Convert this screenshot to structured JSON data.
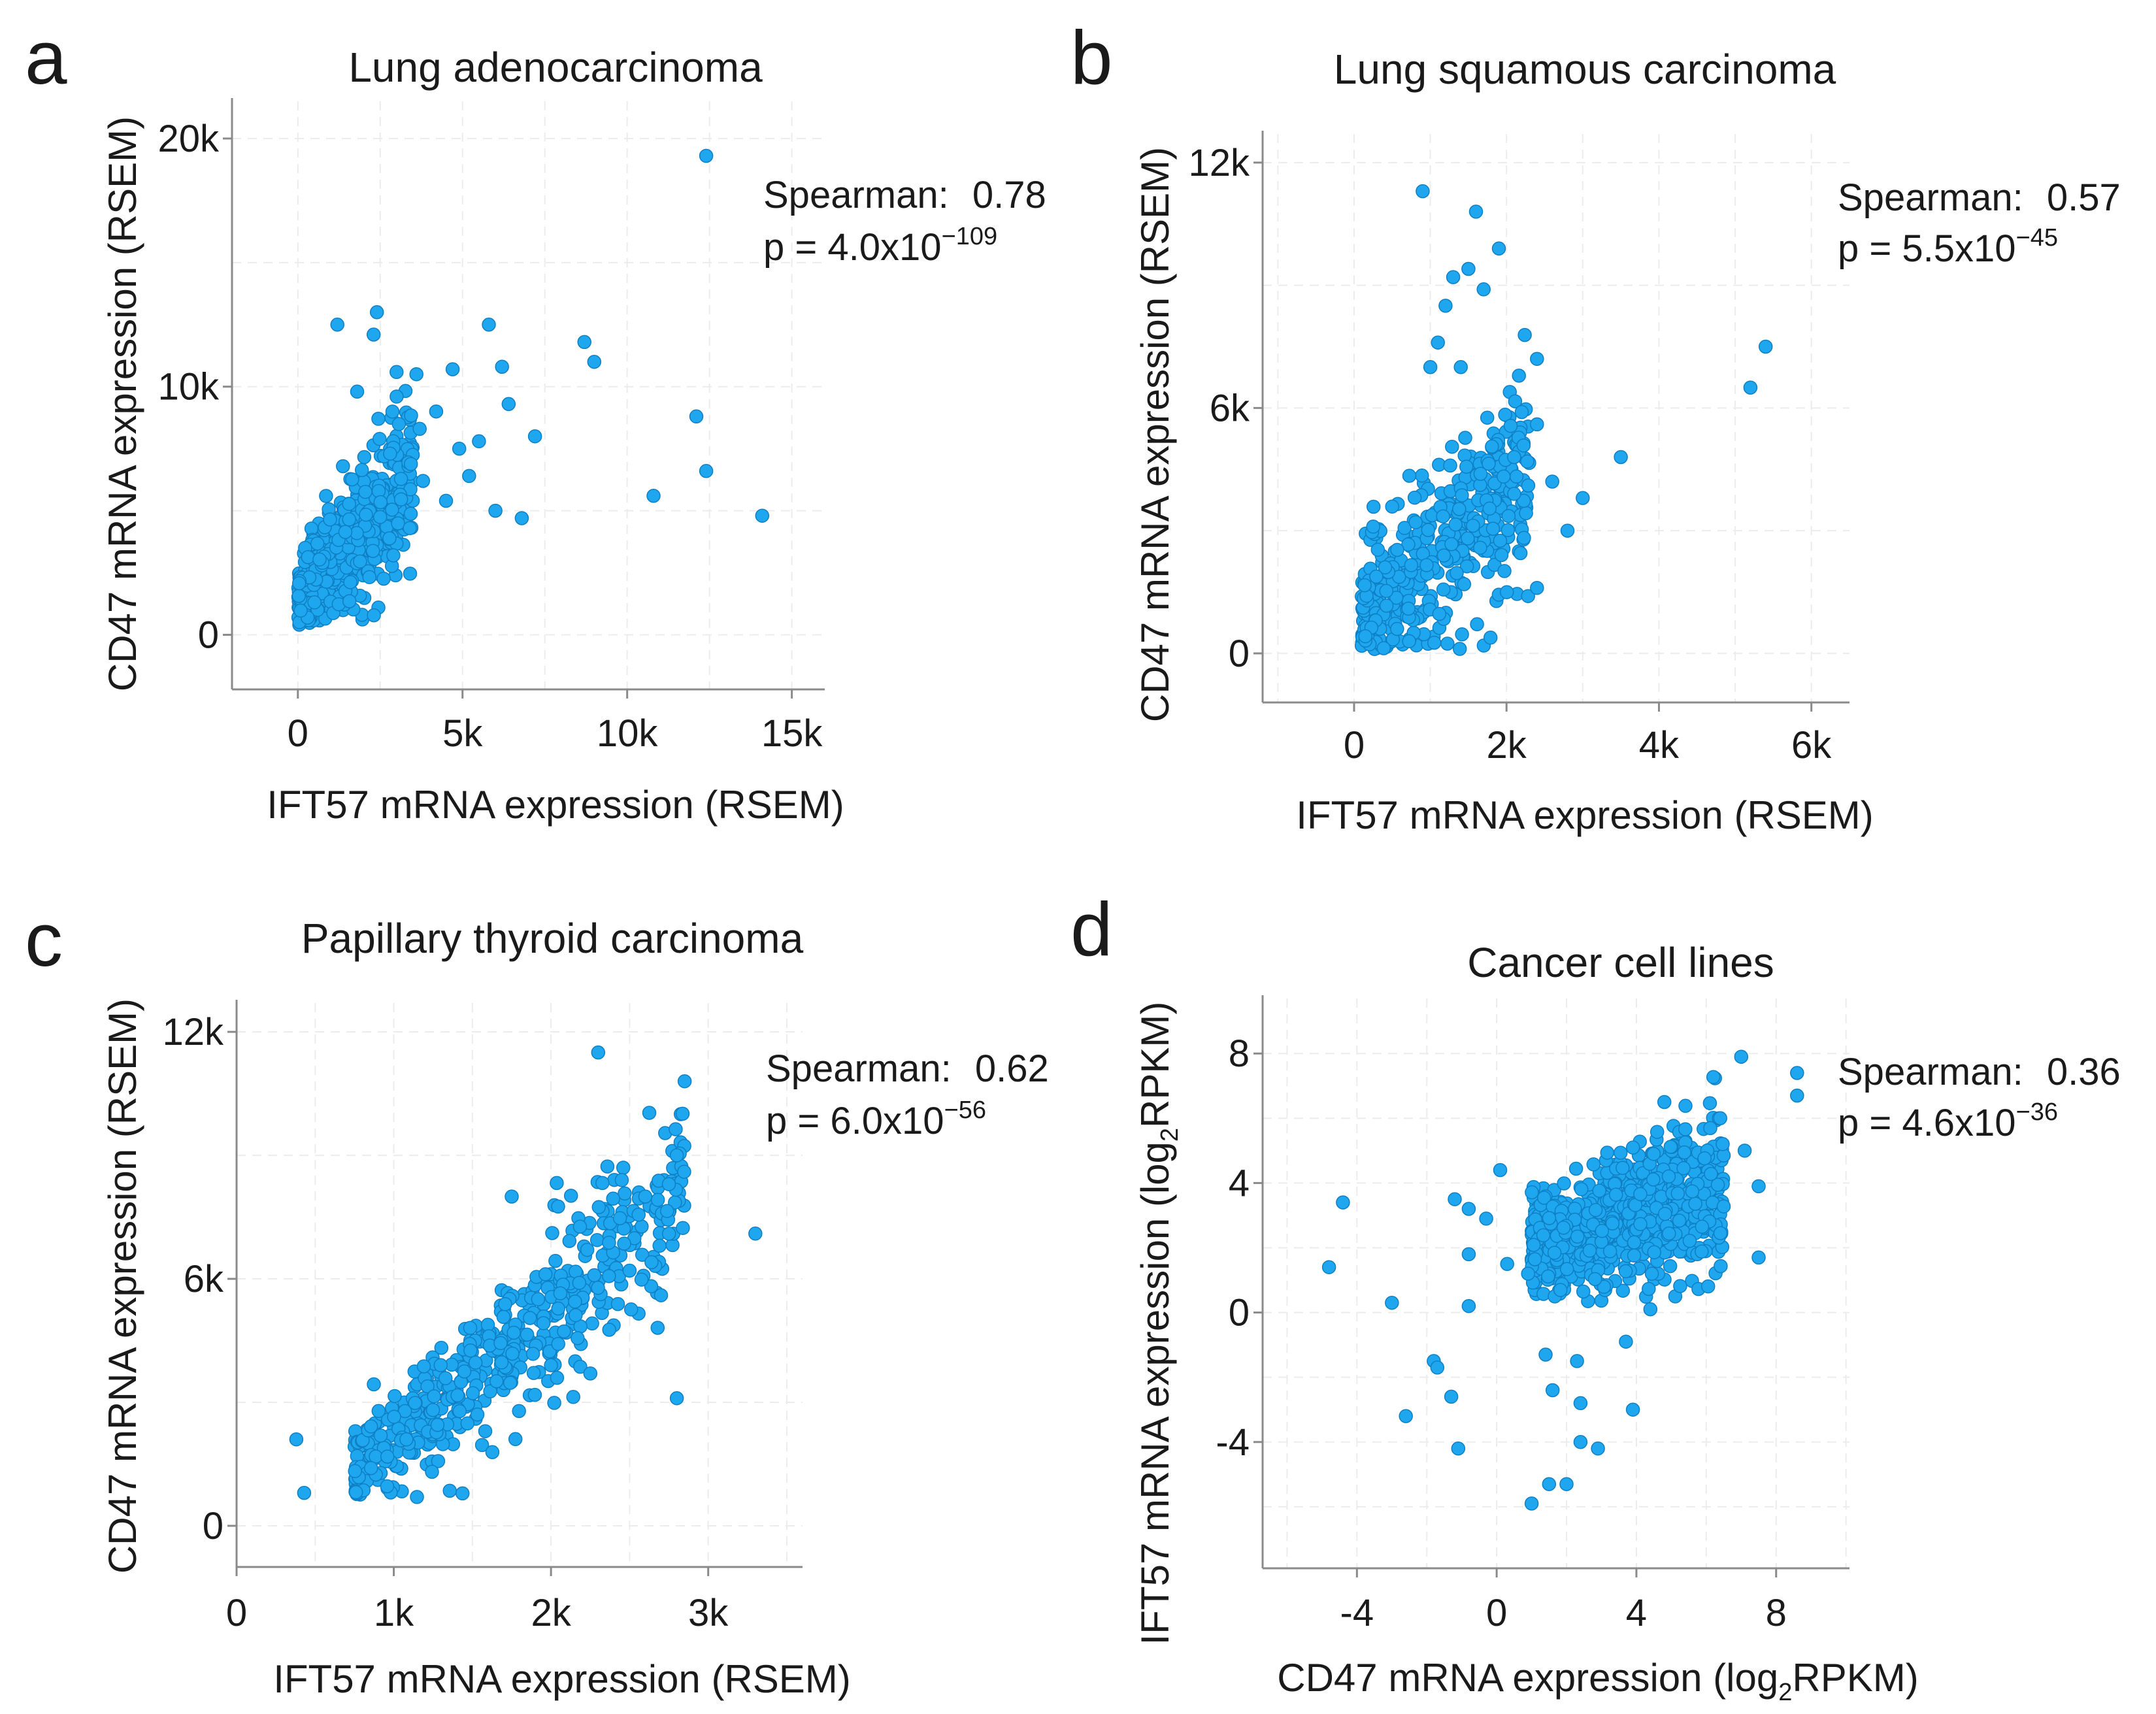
{
  "chart_data": [
    {
      "panel": "a",
      "type": "scatter",
      "title": "Lung adenocarcinoma",
      "xlabel": "IFT57 mRNA expression (RSEM)",
      "ylabel": "CD47 mRNA expression (RSEM)",
      "xlim": [
        -2000,
        16000
      ],
      "ylim": [
        -2200,
        21500
      ],
      "xticks": [
        {
          "value": 0,
          "label": "0"
        },
        {
          "value": 5000,
          "label": "5k"
        },
        {
          "value": 10000,
          "label": "10k"
        },
        {
          "value": 15000,
          "label": "15k"
        }
      ],
      "yticks": [
        {
          "value": 0,
          "label": "0"
        },
        {
          "value": 10000,
          "label": "10k"
        },
        {
          "value": 20000,
          "label": "20k"
        }
      ],
      "stats": {
        "spearman_label": "Spearman:",
        "spearman": "0.78",
        "p_prefix": "p = 4.0x10",
        "p_exponent": "−109"
      },
      "cloud": {
        "n": 500,
        "xmin": 0,
        "xmax": 3500,
        "ymin": 400,
        "slope": 1.45,
        "intercept": 1400,
        "noise": 1500,
        "seed": 11
      },
      "points": [
        [
          12400,
          19300
        ],
        [
          2400,
          13000
        ],
        [
          1200,
          12500
        ],
        [
          5800,
          12500
        ],
        [
          8700,
          11800
        ],
        [
          9000,
          11000
        ],
        [
          4700,
          10700
        ],
        [
          3600,
          10500
        ],
        [
          6200,
          10800
        ],
        [
          12100,
          8800
        ],
        [
          10800,
          5600
        ],
        [
          12400,
          6600
        ],
        [
          14100,
          4800
        ],
        [
          6000,
          5000
        ],
        [
          6800,
          4700
        ],
        [
          7200,
          8000
        ],
        [
          5500,
          7800
        ],
        [
          4200,
          9000
        ],
        [
          3000,
          9600
        ],
        [
          6400,
          9300
        ],
        [
          4900,
          7500
        ],
        [
          3700,
          8300
        ],
        [
          2800,
          7300
        ],
        [
          5200,
          6400
        ],
        [
          4500,
          5400
        ],
        [
          2300,
          12100
        ],
        [
          1800,
          9800
        ],
        [
          2900,
          3200
        ],
        [
          3400,
          4300
        ],
        [
          3800,
          6200
        ]
      ]
    },
    {
      "panel": "b",
      "type": "scatter",
      "title": "Lung squamous carcinoma",
      "xlabel": "IFT57 mRNA expression (RSEM)",
      "ylabel": "CD47 mRNA expression (RSEM)",
      "xlim": [
        -1200,
        6500
      ],
      "ylim": [
        -1200,
        12700
      ],
      "xticks": [
        {
          "value": 0,
          "label": "0"
        },
        {
          "value": 2000,
          "label": "2k"
        },
        {
          "value": 4000,
          "label": "4k"
        },
        {
          "value": 6000,
          "label": "6k"
        }
      ],
      "yticks": [
        {
          "value": 0,
          "label": "0"
        },
        {
          "value": 6000,
          "label": "6k"
        },
        {
          "value": 12000,
          "label": "12k"
        }
      ],
      "stats": {
        "spearman_label": "Spearman:",
        "spearman": "0.57",
        "p_prefix": "p = 5.5x10",
        "p_exponent": "−45"
      },
      "cloud": {
        "n": 460,
        "xmin": 100,
        "xmax": 2300,
        "ymin": 100,
        "slope": 1.6,
        "intercept": 700,
        "noise": 1300,
        "seed": 23
      },
      "points": [
        [
          900,
          11300
        ],
        [
          1600,
          10800
        ],
        [
          1900,
          9900
        ],
        [
          1500,
          9400
        ],
        [
          1700,
          8900
        ],
        [
          1300,
          9200
        ],
        [
          1200,
          8500
        ],
        [
          1100,
          7600
        ],
        [
          5400,
          7500
        ],
        [
          5200,
          6500
        ],
        [
          3500,
          4800
        ],
        [
          3000,
          3800
        ],
        [
          2800,
          3000
        ],
        [
          2400,
          1600
        ],
        [
          2400,
          7200
        ],
        [
          1400,
          7000
        ],
        [
          1000,
          7000
        ],
        [
          2200,
          5900
        ],
        [
          2600,
          4200
        ],
        [
          2100,
          3900
        ],
        [
          2400,
          5600
        ],
        [
          2100,
          4800
        ]
      ]
    },
    {
      "panel": "c",
      "type": "scatter",
      "title": "Papillary thyroid carcinoma",
      "xlabel": "IFT57 mRNA expression (RSEM)",
      "ylabel": "CD47 mRNA expression (RSEM)",
      "xlim": [
        0,
        3600
      ],
      "ylim": [
        -1000,
        12700
      ],
      "xticks": [
        {
          "value": 0,
          "label": "0"
        },
        {
          "value": 1000,
          "label": "1k"
        },
        {
          "value": 2000,
          "label": "2k"
        },
        {
          "value": 3000,
          "label": "3k"
        }
      ],
      "yticks": [
        {
          "value": 0,
          "label": "0"
        },
        {
          "value": 6000,
          "label": "6k"
        },
        {
          "value": 12000,
          "label": "12k"
        }
      ],
      "stats": {
        "spearman_label": "Spearman:",
        "spearman": "0.62",
        "p_prefix": "p = 6.0x10",
        "p_exponent": "−56"
      },
      "cloud": {
        "n": 520,
        "xmin": 750,
        "xmax": 2850,
        "ymin": 700,
        "slope": 3.3,
        "intercept": -1300,
        "noise": 1150,
        "seed": 37
      },
      "points": [
        [
          2300,
          11500
        ],
        [
          2850,
          10800
        ],
        [
          3300,
          7100
        ],
        [
          2800,
          9000
        ],
        [
          2750,
          8300
        ],
        [
          2450,
          8400
        ],
        [
          2600,
          8000
        ],
        [
          1750,
          8000
        ],
        [
          380,
          2100
        ],
        [
          430,
          800
        ],
        [
          2800,
          3100
        ],
        [
          2250,
          3700
        ],
        [
          2000,
          3900
        ],
        [
          2500,
          6200
        ],
        [
          2700,
          5600
        ]
      ]
    },
    {
      "panel": "d",
      "type": "scatter",
      "title": "Cancer cell lines",
      "xlabel": "CD47 mRNA expression (log2RPKM)",
      "ylabel": "IFT57 mRNA expression (log2RPKM)",
      "xlim": [
        -6.7,
        10.1
      ],
      "ylim": [
        -7.9,
        9.7
      ],
      "xticks": [
        {
          "value": -4,
          "label": "-4"
        },
        {
          "value": 0,
          "label": "0"
        },
        {
          "value": 4,
          "label": "4"
        },
        {
          "value": 8,
          "label": "8"
        }
      ],
      "yticks": [
        {
          "value": -4,
          "label": "-4"
        },
        {
          "value": 0,
          "label": "0"
        },
        {
          "value": 4,
          "label": "4"
        },
        {
          "value": 8,
          "label": "8"
        }
      ],
      "stats": {
        "spearman_label": "Spearman:",
        "spearman": "0.36",
        "p_prefix": "p = 4.6x10",
        "p_exponent": "−36"
      },
      "cloud": {
        "n": 900,
        "xmin": 1.0,
        "xmax": 6.5,
        "ymin": 0.3,
        "slope": 0.35,
        "intercept": 1.7,
        "noise": 1.25,
        "seed": 53
      },
      "points": [
        [
          -4.4,
          3.4
        ],
        [
          -4.8,
          1.4
        ],
        [
          -3.0,
          0.3
        ],
        [
          -2.6,
          -3.2
        ],
        [
          -1.8,
          -1.5
        ],
        [
          -1.7,
          -1.7
        ],
        [
          -1.3,
          -2.6
        ],
        [
          -1.1,
          -4.2
        ],
        [
          -1.2,
          3.5
        ],
        [
          -0.3,
          2.9
        ],
        [
          0.1,
          4.4
        ],
        [
          -0.8,
          1.8
        ],
        [
          -0.8,
          3.2
        ],
        [
          0.9,
          1.2
        ],
        [
          -0.8,
          0.2
        ],
        [
          1.0,
          -5.9
        ],
        [
          1.5,
          -5.3
        ],
        [
          2.0,
          -5.3
        ],
        [
          2.4,
          -4.0
        ],
        [
          2.9,
          -4.2
        ],
        [
          3.9,
          -3.0
        ],
        [
          1.6,
          -2.4
        ],
        [
          2.4,
          -2.8
        ],
        [
          1.4,
          -1.3
        ],
        [
          2.3,
          -1.5
        ],
        [
          3.7,
          -0.9
        ],
        [
          4.4,
          0.1
        ],
        [
          7.0,
          7.9
        ],
        [
          8.6,
          7.4
        ],
        [
          8.6,
          6.7
        ],
        [
          6.4,
          6.0
        ],
        [
          7.1,
          5.0
        ],
        [
          7.5,
          3.9
        ],
        [
          7.5,
          1.7
        ],
        [
          4.8,
          6.5
        ],
        [
          0.3,
          1.5
        ]
      ]
    }
  ]
}
